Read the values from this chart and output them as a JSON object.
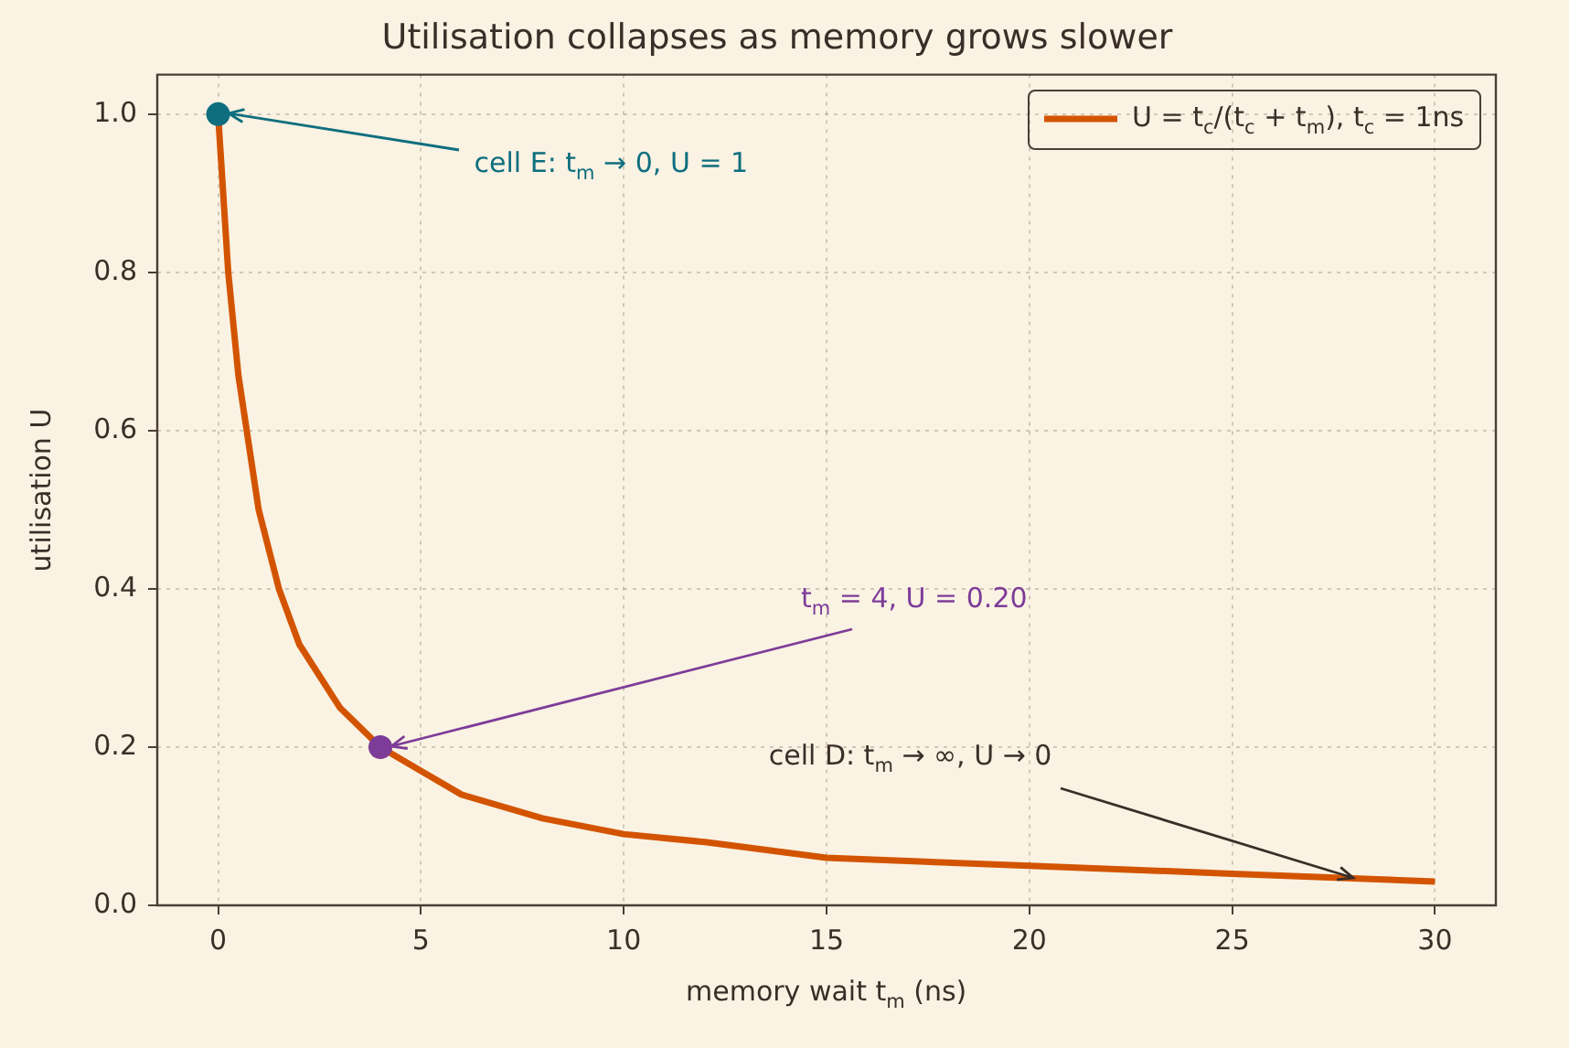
{
  "chart_data": {
    "type": "line",
    "title": "Utilisation collapses as memory grows slower",
    "xlabel": "memory wait t$_{m}$  (ns)",
    "ylabel": "utilisation  U",
    "series": [
      {
        "type": "line",
        "name": "U = t$_{c}$/(t$_{c}$ + t$_{m}$), t$_{c}$ = 1ns",
        "color": "#d35400",
        "x": [
          0,
          0.25,
          0.5,
          1,
          1.5,
          2,
          3,
          4,
          5,
          6,
          8,
          10,
          12,
          15,
          20,
          25,
          30
        ],
        "values": [
          1,
          0.8,
          0.67,
          0.5,
          0.4,
          0.33,
          0.25,
          0.2,
          0.17,
          0.14,
          0.11,
          0.09,
          0.08,
          0.06,
          0.05,
          0.04,
          0.03
        ]
      },
      {
        "type": "scatter",
        "color": "#0e6e7e",
        "marker": "circle",
        "x": [
          0
        ],
        "values": [
          1
        ]
      },
      {
        "type": "scatter",
        "color": "#7d3c98",
        "marker": "circle",
        "x": [
          4
        ],
        "values": [
          0.2
        ]
      }
    ],
    "annotations": [
      {
        "text": "cell E: t$_{m}$ → 0, U = 1",
        "x": 0,
        "y": 1
      },
      {
        "text": "t$_{m}$ = 4, U = 0.20",
        "x": 4,
        "y": 0.2
      },
      {
        "text": "cell D: t$_{m}$ → ∞, U → 0",
        "x": 28,
        "y": 0.035
      }
    ],
    "xlim": [
      -1.5,
      31.5
    ],
    "ylim": [
      0,
      1.05
    ],
    "xticks": [
      0,
      5,
      10,
      15,
      20,
      25,
      30
    ],
    "yticks": [
      {
        "value": 0,
        "label": "0.0"
      },
      0.2,
      0.4,
      0.6,
      0.8,
      {
        "value": 1,
        "label": "1.0"
      }
    ],
    "grid": true,
    "line_style": "solid"
  }
}
